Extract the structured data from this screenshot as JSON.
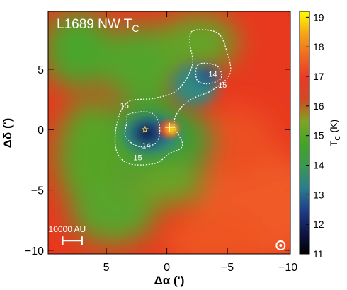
{
  "chart_data": {
    "type": "heatmap",
    "title": "L1689 NW T",
    "title_subscript": "C",
    "xlabel": "Δα (')",
    "ylabel": "Δδ (')",
    "xlim": [
      9.8,
      -10.2
    ],
    "ylim": [
      -10.3,
      9.8
    ],
    "xticks": [
      5,
      0,
      -5,
      -10
    ],
    "xtick_labels": [
      "5",
      "0",
      "−5",
      "−10"
    ],
    "yticks": [
      5,
      0,
      -5,
      -10
    ],
    "ytick_labels": [
      "5",
      "0",
      "−5",
      "−10"
    ],
    "colorbar": {
      "label": "T",
      "label_subscript": "C",
      "label_unit": " (K)",
      "range": [
        11,
        19.2
      ],
      "ticks": [
        11,
        12,
        13,
        14,
        15,
        16,
        17,
        18,
        19
      ],
      "tick_labels": [
        "11",
        "12",
        "13",
        "14",
        "15",
        "16",
        "17",
        "18",
        "19"
      ],
      "colors": [
        "#000000",
        "#10164a",
        "#1f3f8a",
        "#2c7d8d",
        "#3a9950",
        "#43a428",
        "#7da523",
        "#d04a22",
        "#e83a28",
        "#f06a20",
        "#f5a517",
        "#ffff00"
      ]
    },
    "contours": [
      {
        "level": 15,
        "label": "15",
        "points": [
          [
            -2.2,
            8.2
          ],
          [
            -4.2,
            8.0
          ],
          [
            -5.0,
            6.3
          ],
          [
            -5.2,
            4.6
          ],
          [
            -3.8,
            3.3
          ],
          [
            -2.0,
            2.5
          ],
          [
            -1.0,
            1.6
          ],
          [
            -0.6,
            0.4
          ],
          [
            -1.3,
            -1.3
          ],
          [
            -0.2,
            -2.0
          ],
          [
            1.0,
            -2.8
          ],
          [
            3.2,
            -2.8
          ],
          [
            4.2,
            -1.6
          ],
          [
            4.1,
            0.6
          ],
          [
            3.2,
            2.3
          ],
          [
            1.0,
            2.6
          ],
          [
            -0.9,
            3.3
          ],
          [
            -2.1,
            5.3
          ],
          [
            -1.9,
            7.2
          ]
        ]
      },
      {
        "level": 14,
        "label": "14",
        "points": [
          [
            -2.6,
            5.4
          ],
          [
            -4.1,
            5.3
          ],
          [
            -4.5,
            4.3
          ],
          [
            -3.5,
            3.8
          ],
          [
            -2.5,
            4.1
          ]
        ]
      },
      {
        "level": 14,
        "label": "14",
        "points": [
          [
            3.1,
            1.3
          ],
          [
            1.3,
            1.4
          ],
          [
            0.6,
            0.3
          ],
          [
            0.9,
            -1.1
          ],
          [
            2.3,
            -1.4
          ],
          [
            3.4,
            -0.6
          ],
          [
            3.3,
            0.6
          ]
        ]
      }
    ],
    "contour_labels": [
      {
        "text": "15",
        "x": 3.5,
        "y": 2.0
      },
      {
        "text": "14",
        "x": -3.8,
        "y": 4.6
      },
      {
        "text": "15",
        "x": -4.6,
        "y": 3.7
      },
      {
        "text": "14",
        "x": 1.7,
        "y": -1.3
      },
      {
        "text": "15",
        "x": 2.4,
        "y": -2.3
      }
    ],
    "markers": [
      {
        "symbol": "star",
        "x": 1.8,
        "y": 0.0
      },
      {
        "symbol": "cross",
        "x": -0.2,
        "y": 0.2
      }
    ],
    "hot_spot": {
      "x": -0.2,
      "y": 0.1
    },
    "scale_bar": {
      "label": "10000 AU",
      "x_from": 8.6,
      "x_to": 7.0,
      "y": -9.2
    },
    "beam_marker": {
      "x": -9.4,
      "y": -9.6
    }
  }
}
